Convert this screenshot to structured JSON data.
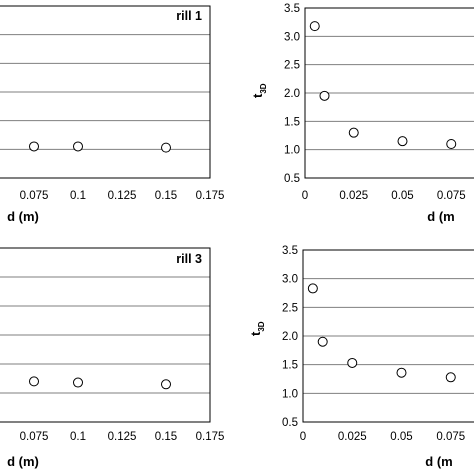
{
  "chart_data": [
    {
      "type": "scatter",
      "title": "rill 1",
      "xlabel": "d (m)",
      "ylabel": "",
      "xlim": [
        0.05,
        0.175
      ],
      "ylim": [
        0.5,
        3.5
      ],
      "x_ticks": [
        "0.075",
        "0.1",
        "0.125",
        "0.15",
        "0.175"
      ],
      "y_ticks": [],
      "grid": "horizontal",
      "series": [
        {
          "x": [
            0.075,
            0.1,
            0.15
          ],
          "y": [
            1.05,
            1.05,
            1.03
          ]
        }
      ]
    },
    {
      "type": "scatter",
      "title": "",
      "xlabel": "d (m",
      "ylabel": "t3D",
      "xlim": [
        0,
        0.1
      ],
      "ylim": [
        0.5,
        3.5
      ],
      "x_ticks": [
        "0",
        "0.025",
        "0.05",
        "0.075"
      ],
      "y_ticks": [
        "0.5",
        "1.0",
        "1.5",
        "2.0",
        "2.5",
        "3.0",
        "3.5"
      ],
      "grid": "horizontal",
      "series": [
        {
          "x": [
            0.005,
            0.01,
            0.025,
            0.05,
            0.075
          ],
          "y": [
            3.18,
            1.95,
            1.3,
            1.15,
            1.1
          ]
        }
      ]
    },
    {
      "type": "scatter",
      "title": "rill 3",
      "xlabel": "d (m)",
      "ylabel": "",
      "xlim": [
        0.05,
        0.175
      ],
      "ylim": [
        0.5,
        3.5
      ],
      "x_ticks": [
        "0.075",
        "0.1",
        "0.125",
        "0.15",
        "0.175"
      ],
      "y_ticks": [],
      "grid": "horizontal",
      "series": [
        {
          "x": [
            0.075,
            0.1,
            0.15
          ],
          "y": [
            1.2,
            1.18,
            1.15
          ]
        }
      ]
    },
    {
      "type": "scatter",
      "title": "",
      "xlabel": "d (m",
      "ylabel": "t3D",
      "xlim": [
        0,
        0.1
      ],
      "ylim": [
        0.5,
        3.5
      ],
      "x_ticks": [
        "0",
        "0.025",
        "0.05",
        "0.075"
      ],
      "y_ticks": [
        "0.5",
        "1.0",
        "1.5",
        "2.0",
        "2.5",
        "3.0",
        "3.5"
      ],
      "grid": "horizontal",
      "series": [
        {
          "x": [
            0.005,
            0.01,
            0.025,
            0.05,
            0.075
          ],
          "y": [
            2.83,
            1.9,
            1.53,
            1.36,
            1.28
          ]
        }
      ]
    }
  ]
}
